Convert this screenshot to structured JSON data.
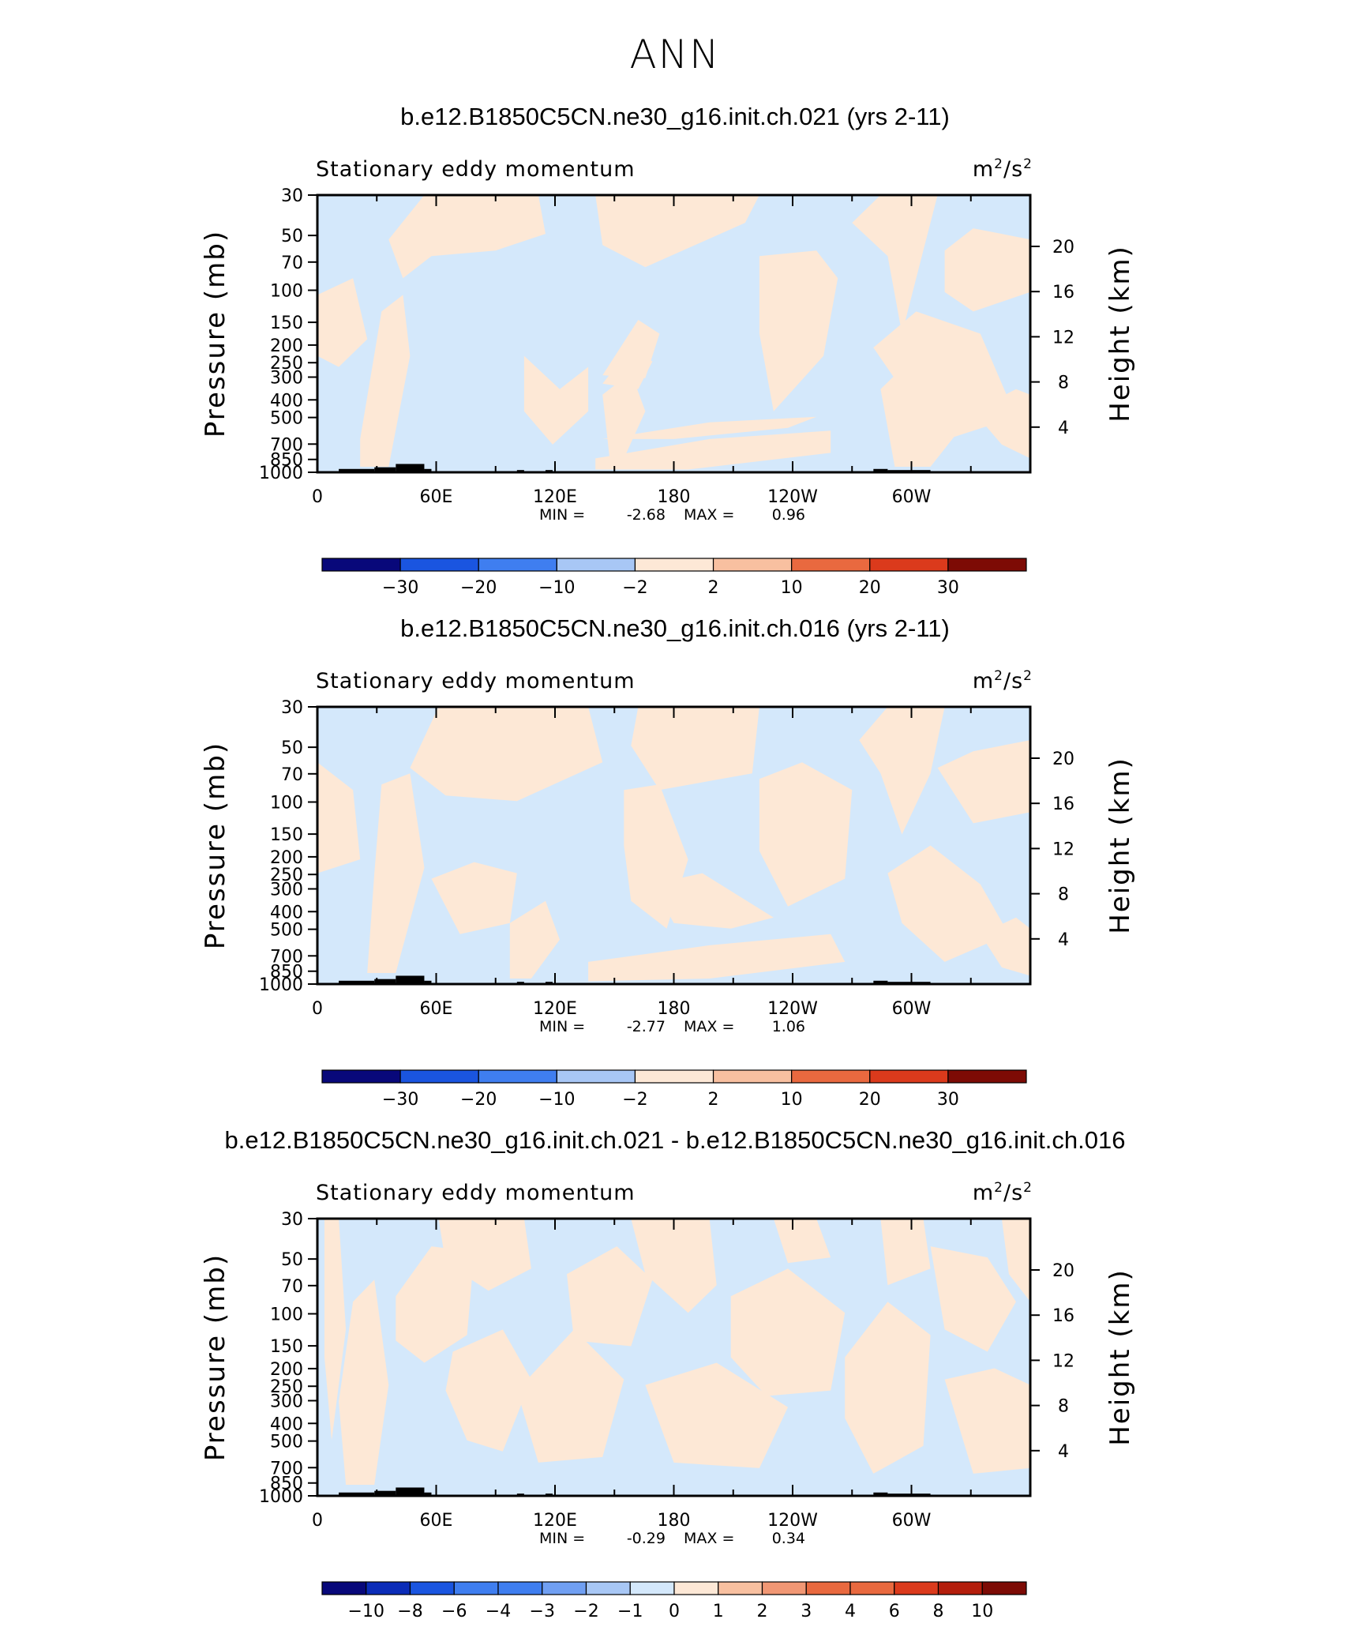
{
  "page": {
    "title": "ANN"
  },
  "colors": {
    "negative": "#d4e8fb",
    "positive": "#fde8d6",
    "topography": "#000000",
    "colorbar_main": [
      "#08087a",
      "#0b2cb8",
      "#1a55e0",
      "#3f7ef0",
      "#709ff2",
      "#a8c7f5",
      "#d4e8fb",
      "#fde8d6",
      "#f8c0a0",
      "#f19774",
      "#e9693f",
      "#db3a1c",
      "#b41e0c",
      "#7d0b05"
    ],
    "colorbar_diff": [
      "#08087a",
      "#0b2cb8",
      "#1a55e0",
      "#3f7ef0",
      "#709ff2",
      "#a8c7f5",
      "#d4e8fb",
      "#fde8d6",
      "#f8c0a0",
      "#f19774",
      "#e9693f",
      "#db3a1c",
      "#b41e0c",
      "#7d0b05"
    ]
  },
  "chart_data": [
    {
      "type": "heatmap",
      "title": "b.e12.B1850C5CN.ne30_g16.init.ch.021 (yrs 2-11)",
      "subtitle_left": "Stationary eddy momentum",
      "units": "m²/s²",
      "units_base": "m",
      "units_sup1": "2",
      "units_mid": "/s",
      "units_sup2": "2",
      "xlabel": "",
      "ylabel": "Pressure (mb)",
      "y2label": "Height (km)",
      "x_ticks": [
        "0",
        "60E",
        "120E",
        "180",
        "120W",
        "60W"
      ],
      "y_ticks": [
        "30",
        "50",
        "70",
        "100",
        "150",
        "200",
        "250",
        "300",
        "400",
        "500",
        "700",
        "850",
        "1000"
      ],
      "y_scale": "log",
      "ylim": [
        1000,
        30
      ],
      "y2_ticks": [
        "4",
        "8",
        "12",
        "16",
        "20"
      ],
      "min_label": "MIN =",
      "min_value": "-2.68",
      "max_label": "MAX =",
      "max_value": "0.96",
      "min": -2.68,
      "max": 0.96,
      "colorbar_labels": [
        "-30",
        "-20",
        "-10",
        "-2",
        "2",
        "10",
        "20",
        "30"
      ],
      "colorbar_levels": [
        -30,
        -20,
        -10,
        -2,
        2,
        10,
        20,
        30
      ]
    },
    {
      "type": "heatmap",
      "title": "b.e12.B1850C5CN.ne30_g16.init.ch.016 (yrs 2-11)",
      "subtitle_left": "Stationary eddy momentum",
      "units": "m²/s²",
      "units_base": "m",
      "units_sup1": "2",
      "units_mid": "/s",
      "units_sup2": "2",
      "xlabel": "",
      "ylabel": "Pressure (mb)",
      "y2label": "Height (km)",
      "x_ticks": [
        "0",
        "60E",
        "120E",
        "180",
        "120W",
        "60W"
      ],
      "y_ticks": [
        "30",
        "50",
        "70",
        "100",
        "150",
        "200",
        "250",
        "300",
        "400",
        "500",
        "700",
        "850",
        "1000"
      ],
      "y_scale": "log",
      "ylim": [
        1000,
        30
      ],
      "y2_ticks": [
        "4",
        "8",
        "12",
        "16",
        "20"
      ],
      "min_label": "MIN =",
      "min_value": "-2.77",
      "max_label": "MAX =",
      "max_value": "1.06",
      "min": -2.77,
      "max": 1.06,
      "colorbar_labels": [
        "-30",
        "-20",
        "-10",
        "-2",
        "2",
        "10",
        "20",
        "30"
      ],
      "colorbar_levels": [
        -30,
        -20,
        -10,
        -2,
        2,
        10,
        20,
        30
      ]
    },
    {
      "type": "heatmap",
      "title": "b.e12.B1850C5CN.ne30_g16.init.ch.021 - b.e12.B1850C5CN.ne30_g16.init.ch.016",
      "subtitle_left": "Stationary eddy momentum",
      "units": "m²/s²",
      "units_base": "m",
      "units_sup1": "2",
      "units_mid": "/s",
      "units_sup2": "2",
      "xlabel": "",
      "ylabel": "Pressure (mb)",
      "y2label": "Height (km)",
      "x_ticks": [
        "0",
        "60E",
        "120E",
        "180",
        "120W",
        "60W"
      ],
      "y_ticks": [
        "30",
        "50",
        "70",
        "100",
        "150",
        "200",
        "250",
        "300",
        "400",
        "500",
        "700",
        "850",
        "1000"
      ],
      "y_scale": "log",
      "ylim": [
        1000,
        30
      ],
      "y2_ticks": [
        "4",
        "8",
        "12",
        "16",
        "20"
      ],
      "min_label": "MIN =",
      "min_value": "-0.29",
      "max_label": "MAX =",
      "max_value": "0.34",
      "min": -0.29,
      "max": 0.34,
      "colorbar_labels": [
        "-10",
        "-8",
        "-6",
        "-4",
        "-3",
        "-2",
        "-1",
        "0",
        "1",
        "2",
        "3",
        "4",
        "6",
        "8",
        "10"
      ],
      "colorbar_levels": [
        -10,
        -8,
        -6,
        -4,
        -3,
        -2,
        -1,
        0,
        1,
        2,
        3,
        4,
        6,
        8,
        10
      ]
    }
  ]
}
